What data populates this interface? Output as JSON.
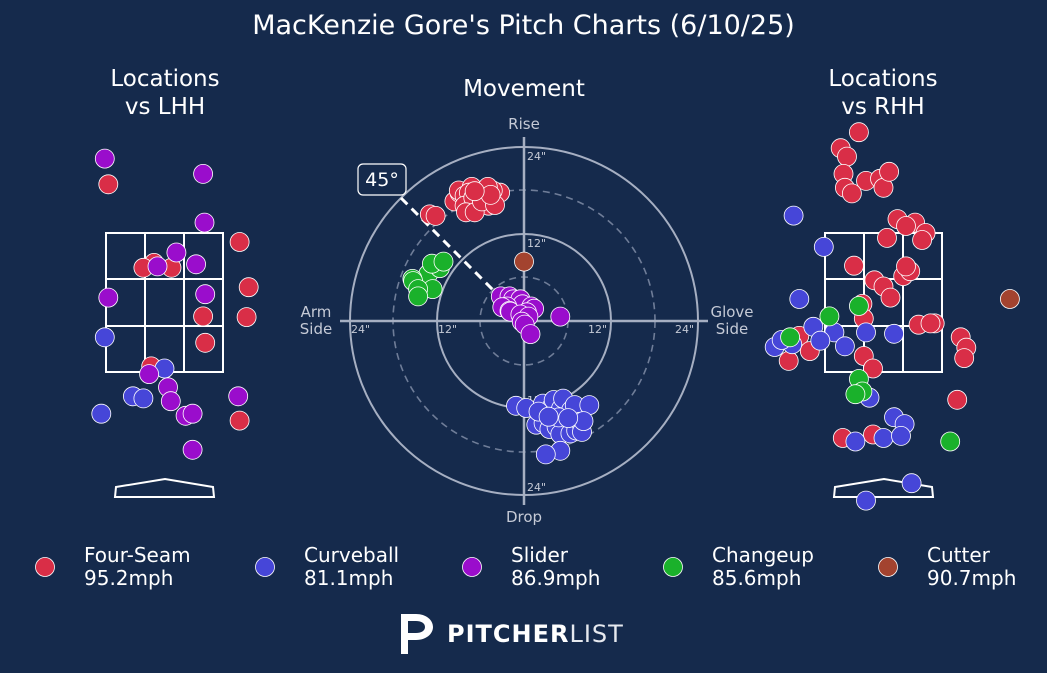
{
  "title": "MacKenzie Gore's Pitch Charts (6/10/25)",
  "panels": {
    "lhh_title": "Locations\nvs LHH",
    "movement_title": "Movement",
    "rhh_title": "Locations\nvs RHH"
  },
  "movement_axes": {
    "top": "Rise",
    "bottom": "Drop",
    "left": "Arm\nSide",
    "right": "Glove\nSide",
    "ring_labels": [
      "12\"",
      "24\""
    ],
    "arm_angle_label": "45°"
  },
  "colors": {
    "background": "#152a4c",
    "four_seam": "#d92e47",
    "curveball": "#4646d8",
    "slider": "#9a0dcc",
    "changeup": "#1ab12b",
    "cutter": "#a3432f"
  },
  "legend": [
    {
      "name": "Four-Seam",
      "speed": "95.2mph",
      "color": "#d92e47"
    },
    {
      "name": "Curveball",
      "speed": "81.1mph",
      "color": "#4646d8"
    },
    {
      "name": "Slider",
      "speed": "86.9mph",
      "color": "#9a0dcc"
    },
    {
      "name": "Changeup",
      "speed": "85.6mph",
      "color": "#1ab12b"
    },
    {
      "name": "Cutter",
      "speed": "90.7mph",
      "color": "#a3432f"
    }
  ],
  "brand": {
    "bold": "PITCHER",
    "light": "LIST"
  },
  "chart_data": [
    {
      "type": "scatter",
      "title": "Locations vs LHH",
      "xlabel": "",
      "ylabel": "",
      "xlim": [
        -2.9,
        2.9
      ],
      "ylim": [
        -0.6,
        5.3
      ],
      "units": "ft from plate center / ft above ground",
      "strike_zone": {
        "x": [
          -0.83,
          0.83
        ],
        "y": [
          1.5,
          3.5
        ]
      },
      "series": [
        {
          "name": "Four-Seam",
          "points": [
            [
              -0.8,
              4.2
            ],
            [
              1.07,
              3.37
            ],
            [
              -0.15,
              3.07
            ],
            [
              -0.3,
              3.0
            ],
            [
              0.1,
              3.0
            ],
            [
              1.2,
              2.72
            ],
            [
              1.17,
              2.29
            ],
            [
              0.55,
              2.3
            ],
            [
              0.58,
              1.92
            ],
            [
              -0.19,
              1.58
            ],
            [
              1.07,
              0.8
            ]
          ]
        },
        {
          "name": "Curveball",
          "points": [
            [
              0.0,
              1.55
            ],
            [
              -0.85,
              2.0
            ],
            [
              -0.45,
              1.15
            ],
            [
              -0.3,
              1.12
            ],
            [
              -0.9,
              0.9
            ]
          ]
        },
        {
          "name": "Slider",
          "points": [
            [
              -0.85,
              4.57
            ],
            [
              0.55,
              4.35
            ],
            [
              0.57,
              3.65
            ],
            [
              0.17,
              3.22
            ],
            [
              -0.1,
              3.02
            ],
            [
              0.45,
              3.05
            ],
            [
              -0.8,
              2.57
            ],
            [
              0.58,
              2.62
            ],
            [
              -0.22,
              1.47
            ],
            [
              0.05,
              1.28
            ],
            [
              0.09,
              1.08
            ],
            [
              1.05,
              1.15
            ],
            [
              0.3,
              0.87
            ],
            [
              0.4,
              0.38
            ],
            [
              0.4,
              0.9
            ]
          ]
        }
      ]
    },
    {
      "type": "scatter",
      "title": "Movement",
      "xlabel": "Arm Side / Glove Side",
      "ylabel": "Drop / Rise",
      "xlim": [
        -24,
        24
      ],
      "ylim": [
        -24,
        24
      ],
      "units": "inches",
      "arm_angle_deg": 45,
      "series": [
        {
          "name": "Four-Seam",
          "points": [
            [
              -13,
              14.7
            ],
            [
              -12.2,
              14.5
            ],
            [
              -9.6,
              16.5
            ],
            [
              -8.9,
              17.7
            ],
            [
              -9.0,
              18.0
            ],
            [
              -8.2,
              17.3
            ],
            [
              -7.3,
              16.7
            ],
            [
              -7.2,
              18.5
            ],
            [
              -7.6,
              17.7
            ],
            [
              -8.2,
              15.9
            ],
            [
              -6.5,
              16.0
            ],
            [
              -7.0,
              17.0
            ],
            [
              -6.2,
              17.7
            ],
            [
              -5.6,
              17.6
            ],
            [
              -4.5,
              16.9
            ],
            [
              -4.9,
              15.9
            ],
            [
              -5.2,
              17.1
            ],
            [
              -3.3,
              17.7
            ],
            [
              -4.3,
              18.0
            ],
            [
              -5.0,
              18.5
            ],
            [
              -8.0,
              15.0
            ],
            [
              -6.8,
              15.0
            ],
            [
              -5.8,
              16.5
            ],
            [
              -4.0,
              16.0
            ],
            [
              -4.6,
              17.4
            ],
            [
              -6.8,
              17.9
            ]
          ]
        },
        {
          "name": "Curveball",
          "points": [
            [
              -1.1,
              -11.7
            ],
            [
              0.3,
              -12.0
            ],
            [
              2.6,
              -11.4
            ],
            [
              3.8,
              -11.9
            ],
            [
              4.1,
              -10.9
            ],
            [
              5.1,
              -12.1
            ],
            [
              5.4,
              -10.7
            ],
            [
              6.5,
              -12.3
            ],
            [
              7.0,
              -11.6
            ],
            [
              9.0,
              -11.6
            ],
            [
              1.7,
              -14.3
            ],
            [
              2.7,
              -14.1
            ],
            [
              3.5,
              -14.9
            ],
            [
              4.5,
              -14.6
            ],
            [
              5.0,
              -15.6
            ],
            [
              6.8,
              -14.6
            ],
            [
              6.4,
              -15.5
            ],
            [
              7.2,
              -15.1
            ],
            [
              7.7,
              -13.9
            ],
            [
              8.0,
              -15.3
            ],
            [
              8.2,
              -13.8
            ],
            [
              2.0,
              -12.5
            ],
            [
              4.8,
              -13.3
            ],
            [
              3.4,
              -13.2
            ],
            [
              6.1,
              -13.4
            ],
            [
              5.0,
              -17.9
            ],
            [
              3.0,
              -18.4
            ]
          ]
        },
        {
          "name": "Slider",
          "points": [
            [
              -3.2,
              3.4
            ],
            [
              -2.0,
              3.4
            ],
            [
              -1.5,
              3.0
            ],
            [
              -0.5,
              3.0
            ],
            [
              -0.2,
              2.3
            ],
            [
              1.0,
              2.0
            ],
            [
              1.4,
              1.7
            ],
            [
              -2.3,
              2.0
            ],
            [
              -3.0,
              1.9
            ],
            [
              -2.0,
              1.4
            ],
            [
              -1.9,
              1.3
            ],
            [
              0.4,
              1.2
            ],
            [
              -0.5,
              0.9
            ],
            [
              0.6,
              0.6
            ],
            [
              -0.3,
              -0.1
            ],
            [
              0.1,
              -0.5
            ],
            [
              5.0,
              0.6
            ],
            [
              0.9,
              -1.8
            ]
          ]
        },
        {
          "name": "Changeup",
          "points": [
            [
              -13.2,
              6.5
            ],
            [
              -11.6,
              7.3
            ],
            [
              -12.7,
              7.9
            ],
            [
              -11.1,
              8.2
            ],
            [
              -15.4,
              5.8
            ],
            [
              -15.3,
              5.5
            ],
            [
              -12.6,
              4.4
            ],
            [
              -14.6,
              4.4
            ],
            [
              -14.6,
              3.4
            ]
          ]
        },
        {
          "name": "Cutter",
          "points": [
            [
              0.0,
              8.2
            ]
          ]
        }
      ]
    },
    {
      "type": "scatter",
      "title": "Locations vs RHH",
      "xlabel": "",
      "ylabel": "",
      "xlim": [
        -2.9,
        2.9
      ],
      "ylim": [
        -0.6,
        5.3
      ],
      "units": "ft from plate center / ft above ground",
      "strike_zone": {
        "x": [
          -0.83,
          0.83
        ],
        "y": [
          1.5,
          3.5
        ]
      },
      "series": [
        {
          "name": "Four-Seam",
          "points": [
            [
              -0.35,
              4.95
            ],
            [
              -0.61,
              4.72
            ],
            [
              -0.52,
              4.6
            ],
            [
              -0.57,
              4.35
            ],
            [
              -0.25,
              4.25
            ],
            [
              -0.05,
              4.28
            ],
            [
              -0.55,
              4.15
            ],
            [
              0.0,
              4.15
            ],
            [
              0.08,
              4.38
            ],
            [
              -0.45,
              4.07
            ],
            [
              0.2,
              3.7
            ],
            [
              0.45,
              3.65
            ],
            [
              0.32,
              3.6
            ],
            [
              0.6,
              3.5
            ],
            [
              0.55,
              3.4
            ],
            [
              0.05,
              3.43
            ],
            [
              -0.42,
              3.03
            ],
            [
              -0.13,
              2.82
            ],
            [
              0.28,
              2.88
            ],
            [
              0.38,
              2.95
            ],
            [
              0.32,
              3.02
            ],
            [
              0.0,
              2.73
            ],
            [
              0.1,
              2.57
            ],
            [
              -0.3,
              2.48
            ],
            [
              -0.28,
              2.27
            ],
            [
              0.5,
              2.18
            ],
            [
              0.73,
              2.2
            ],
            [
              1.1,
              2.0
            ],
            [
              1.18,
              1.85
            ],
            [
              -1.2,
              2.02
            ],
            [
              -1.05,
              1.8
            ],
            [
              -1.35,
              1.66
            ],
            [
              0.67,
              2.2
            ],
            [
              -0.28,
              1.73
            ],
            [
              -0.15,
              1.55
            ],
            [
              1.05,
              1.1
            ],
            [
              1.15,
              1.7
            ],
            [
              -0.58,
              0.55
            ],
            [
              -0.15,
              0.6
            ]
          ]
        },
        {
          "name": "Curveball",
          "points": [
            [
              -1.28,
              3.75
            ],
            [
              -0.85,
              3.3
            ],
            [
              -1.2,
              2.55
            ],
            [
              -1.0,
              2.15
            ],
            [
              -0.7,
              2.07
            ],
            [
              -0.25,
              2.07
            ],
            [
              0.15,
              2.05
            ],
            [
              -1.3,
              1.9
            ],
            [
              -0.9,
              1.95
            ],
            [
              -0.55,
              1.87
            ],
            [
              -1.55,
              1.86
            ],
            [
              -1.45,
              1.96
            ],
            [
              -0.2,
              1.13
            ],
            [
              0.15,
              0.85
            ],
            [
              0.3,
              0.75
            ],
            [
              0.0,
              0.55
            ],
            [
              0.25,
              0.58
            ],
            [
              -0.4,
              0.5
            ],
            [
              0.4,
              -0.1
            ],
            [
              -0.25,
              -0.35
            ]
          ]
        },
        {
          "name": "Changeup",
          "points": [
            [
              -1.33,
              2.0
            ],
            [
              -0.77,
              2.3
            ],
            [
              -0.35,
              2.45
            ],
            [
              -0.35,
              1.4
            ],
            [
              -0.3,
              1.22
            ],
            [
              -0.4,
              1.18
            ],
            [
              0.95,
              0.5
            ]
          ]
        },
        {
          "name": "Cutter",
          "points": [
            [
              1.8,
              2.55
            ]
          ]
        }
      ]
    }
  ]
}
